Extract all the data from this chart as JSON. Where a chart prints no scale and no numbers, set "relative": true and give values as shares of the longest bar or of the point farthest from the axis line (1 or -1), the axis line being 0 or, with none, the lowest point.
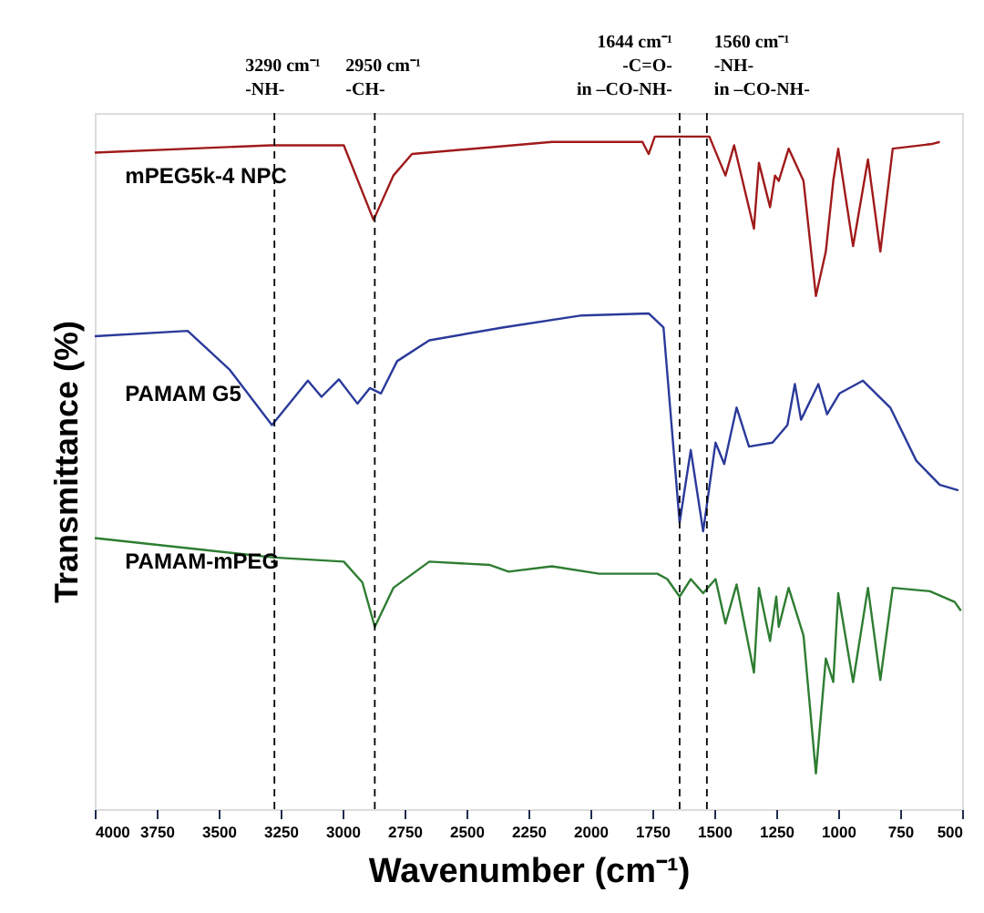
{
  "chart_data": {
    "type": "line",
    "relative": true,
    "xlabel": "Wavenumber (cm⁻¹)",
    "ylabel": "Transmittance (%)",
    "xlim": [
      4000,
      500
    ],
    "xticks": [
      4000,
      3750,
      3500,
      3250,
      3000,
      2750,
      2500,
      2250,
      2000,
      1750,
      1500,
      1250,
      1000,
      750,
      500
    ],
    "tick_labels": "x",
    "line_style": "solid",
    "series": [
      {
        "name": "mPEG5k-4 NPC",
        "color": "#a01a1a",
        "x": [
          4000,
          3290,
          2995,
          2875,
          2795,
          2720,
          2155,
          1790,
          1765,
          1740,
          1520,
          1455,
          1420,
          1340,
          1320,
          1275,
          1255,
          1240,
          1200,
          1140,
          1090,
          1050,
          1020,
          1000,
          940,
          880,
          830,
          780,
          620,
          590
        ],
        "values": [
          0.976,
          0.987,
          0.987,
          0.876,
          0.942,
          0.974,
          0.992,
          0.992,
          0.974,
          1.0,
          1.0,
          0.942,
          0.987,
          0.863,
          0.961,
          0.895,
          0.942,
          0.934,
          0.982,
          0.934,
          0.763,
          0.829,
          0.934,
          0.982,
          0.837,
          0.966,
          0.829,
          0.982,
          0.989,
          0.992
        ]
      },
      {
        "name": "PAMAM G5",
        "color": "#2a3a9a",
        "x": [
          4000,
          3625,
          3455,
          3285,
          3140,
          3085,
          3015,
          2940,
          2890,
          2845,
          2780,
          2650,
          2355,
          2035,
          1765,
          1705,
          1640,
          1595,
          1545,
          1495,
          1460,
          1410,
          1360,
          1265,
          1205,
          1175,
          1150,
          1080,
          1045,
          995,
          900,
          790,
          685,
          590,
          515
        ],
        "values": [
          0.703,
          0.711,
          0.653,
          0.571,
          0.637,
          0.613,
          0.639,
          0.603,
          0.626,
          0.618,
          0.666,
          0.697,
          0.716,
          0.734,
          0.737,
          0.716,
          0.426,
          0.534,
          0.413,
          0.545,
          0.513,
          0.597,
          0.539,
          0.545,
          0.571,
          0.632,
          0.579,
          0.632,
          0.587,
          0.618,
          0.637,
          0.597,
          0.518,
          0.482,
          0.474
        ]
      },
      {
        "name": "PAMAM-mPEG",
        "color": "#2e7d32",
        "x": [
          4000,
          3275,
          2995,
          2920,
          2870,
          2795,
          2650,
          2405,
          2330,
          2155,
          1965,
          1730,
          1690,
          1640,
          1595,
          1545,
          1495,
          1455,
          1410,
          1340,
          1320,
          1275,
          1250,
          1240,
          1200,
          1140,
          1090,
          1050,
          1020,
          1000,
          940,
          880,
          830,
          780,
          630,
          530,
          505
        ],
        "values": [
          0.403,
          0.374,
          0.368,
          0.337,
          0.271,
          0.329,
          0.368,
          0.363,
          0.353,
          0.361,
          0.35,
          0.35,
          0.342,
          0.316,
          0.342,
          0.321,
          0.342,
          0.276,
          0.334,
          0.203,
          0.329,
          0.25,
          0.316,
          0.271,
          0.329,
          0.258,
          0.053,
          0.224,
          0.189,
          0.321,
          0.189,
          0.329,
          0.192,
          0.329,
          0.324,
          0.308,
          0.295
        ]
      }
    ],
    "ref_lines": [
      {
        "axis": "x",
        "value": 3275,
        "label": "3290 cm⁻¹\n-NH-",
        "color": "#000000",
        "line_style": "dashed"
      },
      {
        "axis": "x",
        "value": 2870,
        "label": "2950 cm⁻¹\n-CH-",
        "color": "#000000",
        "line_style": "dashed"
      },
      {
        "axis": "x",
        "value": 1640,
        "label": "1644 cm⁻¹\n-C=O-\nin –CO-NH-",
        "color": "#000000",
        "line_style": "dashed"
      },
      {
        "axis": "x",
        "value": 1530,
        "label": "1560 cm⁻¹\n-NH-\nin –CO-NH-",
        "color": "#000000",
        "line_style": "dashed"
      }
    ]
  }
}
